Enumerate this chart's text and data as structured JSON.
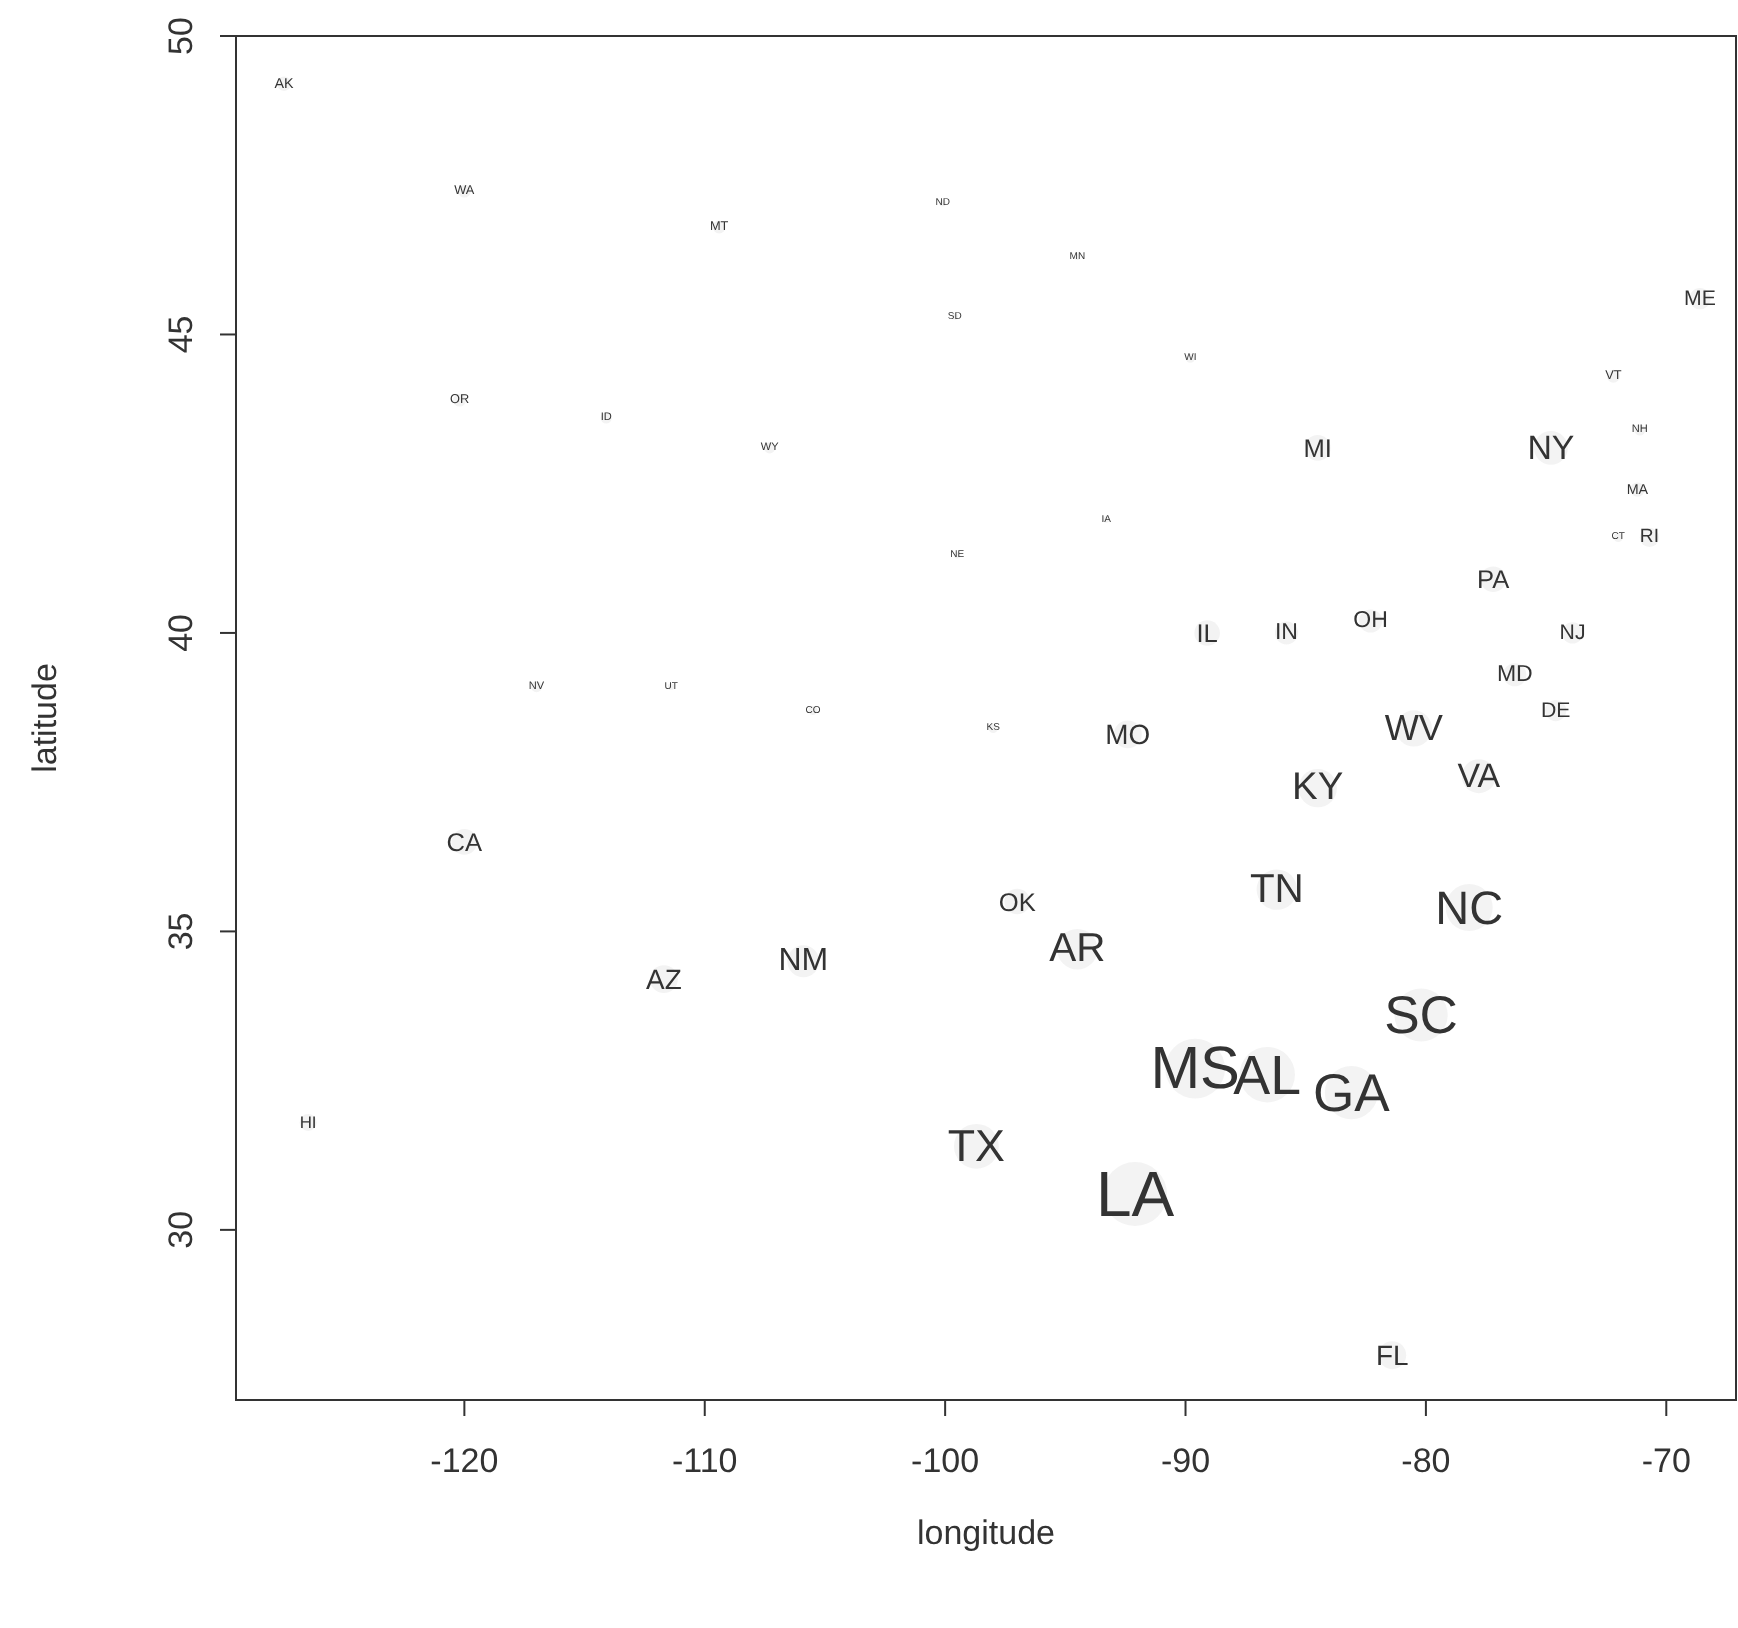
{
  "chart_data": {
    "type": "bubble",
    "xlabel": "longitude",
    "ylabel": "latitude",
    "xlim": [
      -129.5,
      -67.1
    ],
    "ylim": [
      27.15,
      50.0
    ],
    "xticks": [
      -120,
      -110,
      -100,
      -90,
      -80,
      -70
    ],
    "yticks": [
      30,
      35,
      40,
      45,
      50
    ],
    "grid": false,
    "color": "#333333",
    "x": [
      -127.5,
      -120.0,
      -109.4,
      -100.1,
      -94.5,
      -99.6,
      -89.8,
      -120.2,
      -114.1,
      -107.3,
      -84.5,
      -74.8,
      -72.2,
      -71.1,
      -68.6,
      -71.2,
      -72.0,
      -70.7,
      -93.3,
      -99.5,
      -77.2,
      -82.3,
      -89.1,
      -85.8,
      -73.9,
      -76.3,
      -74.6,
      -117.0,
      -111.4,
      -105.5,
      -98.0,
      -92.4,
      -80.5,
      -77.8,
      -84.5,
      -120.0,
      -97.0,
      -86.2,
      -78.2,
      -94.5,
      -105.9,
      -111.7,
      -80.2,
      -89.6,
      -86.6,
      -83.1,
      -126.5,
      -98.7,
      -92.1,
      -81.4
    ],
    "values": [
      49.2,
      47.4,
      46.8,
      47.2,
      46.3,
      45.3,
      44.6,
      43.9,
      43.6,
      43.1,
      43.1,
      43.1,
      44.3,
      43.4,
      45.6,
      42.4,
      41.6,
      41.6,
      41.9,
      41.3,
      40.9,
      40.2,
      40.0,
      40.0,
      40.0,
      39.3,
      38.7,
      39.1,
      39.1,
      38.7,
      38.4,
      38.3,
      38.4,
      37.6,
      37.4,
      36.5,
      35.5,
      35.7,
      35.4,
      34.7,
      34.5,
      34.2,
      33.6,
      32.7,
      32.6,
      32.3,
      31.8,
      31.4,
      30.6,
      27.9
    ],
    "sizes": [
      0.05,
      0.04,
      0.04,
      0.01,
      0.01,
      0.01,
      0.02,
      0.04,
      0.03,
      0.03,
      0.16,
      0.28,
      0.04,
      0.03,
      0.11,
      0.05,
      0.02,
      0.09,
      0.01,
      0.01,
      0.16,
      0.13,
      0.16,
      0.13,
      0.11,
      0.13,
      0.11,
      0.03,
      0.01,
      0.02,
      0.02,
      0.19,
      0.32,
      0.28,
      0.36,
      0.16,
      0.16,
      0.4,
      0.54,
      0.4,
      0.25,
      0.19,
      0.69,
      0.87,
      0.75,
      0.69,
      0.07,
      0.49,
      1,
      0.19
    ],
    "value_labels": [
      "AK",
      "WA",
      "MT",
      "ND",
      "MN",
      "SD",
      "WI",
      "OR",
      "ID",
      "WY",
      "MI",
      "NY",
      "VT",
      "NH",
      "ME",
      "MA",
      "CT",
      "RI",
      "IA",
      "NE",
      "PA",
      "OH",
      "IL",
      "IN",
      "NJ",
      "MD",
      "DE",
      "NV",
      "UT",
      "CO",
      "KS",
      "MO",
      "WV",
      "VA",
      "KY",
      "CA",
      "OK",
      "TN",
      "NC",
      "AR",
      "NM",
      "AZ",
      "SC",
      "MS",
      "AL",
      "GA",
      "HI",
      "TX",
      "LA",
      "FL"
    ]
  }
}
